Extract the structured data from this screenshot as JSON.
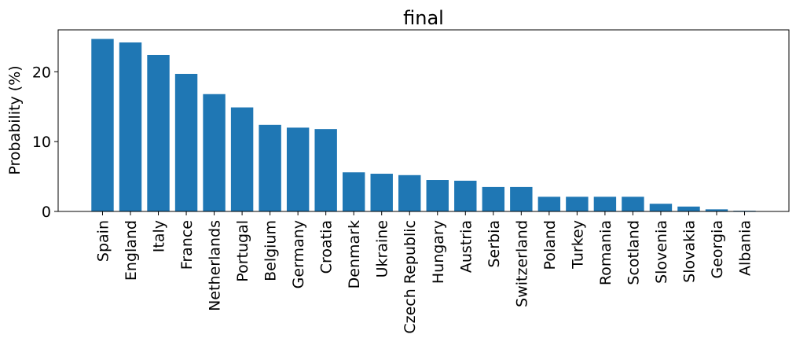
{
  "chart_data": {
    "type": "bar",
    "title": "final",
    "xlabel": "",
    "ylabel": "Probability (%)",
    "ylim": [
      0,
      26
    ],
    "yticks": [
      0,
      10,
      20
    ],
    "grid": false,
    "bar_color": "#1f77b4",
    "categories": [
      "Spain",
      "England",
      "Italy",
      "France",
      "Netherlands",
      "Portugal",
      "Belgium",
      "Germany",
      "Croatia",
      "Denmark",
      "Ukraine",
      "Czech Republic",
      "Hungary",
      "Austria",
      "Serbia",
      "Switzerland",
      "Poland",
      "Turkey",
      "Romania",
      "Scotland",
      "Slovenia",
      "Slovakia",
      "Georgia",
      "Albania"
    ],
    "values": [
      24.7,
      24.2,
      22.4,
      19.7,
      16.8,
      14.9,
      12.4,
      12.0,
      11.8,
      5.6,
      5.4,
      5.2,
      4.5,
      4.4,
      3.5,
      3.5,
      2.1,
      2.1,
      2.1,
      2.1,
      1.1,
      0.7,
      0.3,
      0.1
    ]
  }
}
